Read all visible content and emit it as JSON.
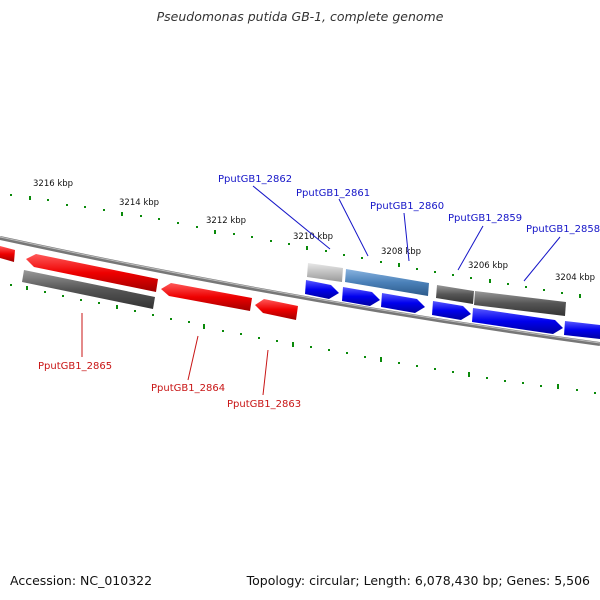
{
  "title": "Pseudomonas putida GB-1, complete genome",
  "accession": "Accession: NC_010322",
  "summary": "Topology: circular; Length: 6,078,430 bp; Genes: 5,506",
  "ticks": [
    "3216 kbp",
    "3214 kbp",
    "3212 kbp",
    "3210 kbp",
    "3208 kbp",
    "3206 kbp",
    "3204 kbp"
  ],
  "genes_top": [
    "PputGB1_2862",
    "PputGB1_2861",
    "PputGB1_2860",
    "PputGB1_2859",
    "PputGB1_2858"
  ],
  "genes_bottom": [
    "PputGB1_2865",
    "PputGB1_2864",
    "PputGB1_2863"
  ],
  "colors": {
    "forward_cds": "#0000e8",
    "reverse_cds": "#e80000",
    "gene": "#555555",
    "rna": "#4a80b8",
    "tick": "#0a8a0a",
    "backbone": "#808080"
  }
}
